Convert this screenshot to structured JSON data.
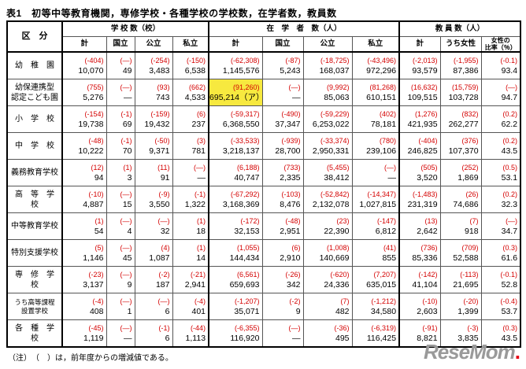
{
  "title": "表1　初等中等教育機関，専修学校・各種学校の学校数，在学者数，教員数",
  "header": {
    "category": "区　分",
    "groups": [
      {
        "label": "学 校 数（校）",
        "cols": [
          "計",
          "国立",
          "公立",
          "私立"
        ]
      },
      {
        "label": "在　学　者　数（人）",
        "cols": [
          "計",
          "国立",
          "公立",
          "私立"
        ]
      },
      {
        "label": "教 員 数（人）",
        "cols": [
          "計",
          "うち女性",
          "女性の\n比率（％）"
        ]
      }
    ]
  },
  "rows": [
    {
      "label": "幼　稚　園",
      "small": false,
      "cells": [
        {
          "c": "(-404)",
          "v": "10,070"
        },
        {
          "c": "(—)",
          "v": "49"
        },
        {
          "c": "(-254)",
          "v": "3,483"
        },
        {
          "c": "(-150)",
          "v": "6,538"
        },
        {
          "c": "(-62,308)",
          "v": "1,145,576"
        },
        {
          "c": "(-87)",
          "v": "5,243"
        },
        {
          "c": "(-18,725)",
          "v": "168,037"
        },
        {
          "c": "(-43,496)",
          "v": "972,296"
        },
        {
          "c": "(-2,013)",
          "v": "93,579"
        },
        {
          "c": "(-1,955)",
          "v": "87,386"
        },
        {
          "c": "(-0.1)",
          "v": "93.4"
        }
      ]
    },
    {
      "label": "幼保連携型\n認定こども園",
      "small": false,
      "cells": [
        {
          "c": "(755)",
          "v": "5,276"
        },
        {
          "c": "(—)",
          "v": "—"
        },
        {
          "c": "(93)",
          "v": "743"
        },
        {
          "c": "(662)",
          "v": "4,533"
        },
        {
          "c": "(91,260)",
          "v": "695,214（ア）",
          "hl": true
        },
        {
          "c": "(—)",
          "v": "—"
        },
        {
          "c": "(9,992)",
          "v": "85,063"
        },
        {
          "c": "(81,268)",
          "v": "610,151"
        },
        {
          "c": "(16,632)",
          "v": "109,515"
        },
        {
          "c": "(15,759)",
          "v": "103,728"
        },
        {
          "c": "(—)",
          "v": "94.7"
        }
      ]
    },
    {
      "label": "小　学　校",
      "small": false,
      "cells": [
        {
          "c": "(-154)",
          "v": "19,738"
        },
        {
          "c": "(-1)",
          "v": "69"
        },
        {
          "c": "(-159)",
          "v": "19,432"
        },
        {
          "c": "(6)",
          "v": "237"
        },
        {
          "c": "(-59,317)",
          "v": "6,368,550"
        },
        {
          "c": "(-490)",
          "v": "37,347"
        },
        {
          "c": "(-59,229)",
          "v": "6,253,022"
        },
        {
          "c": "(402)",
          "v": "78,181"
        },
        {
          "c": "(1,276)",
          "v": "421,935"
        },
        {
          "c": "(832)",
          "v": "262,277"
        },
        {
          "c": "(0.2)",
          "v": "62.2"
        }
      ]
    },
    {
      "label": "中　学　校",
      "small": false,
      "cells": [
        {
          "c": "(-48)",
          "v": "10,222"
        },
        {
          "c": "(-1)",
          "v": "70"
        },
        {
          "c": "(-50)",
          "v": "9,371"
        },
        {
          "c": "(3)",
          "v": "781"
        },
        {
          "c": "(-33,533)",
          "v": "3,218,137"
        },
        {
          "c": "(-939)",
          "v": "28,700"
        },
        {
          "c": "(-33,374)",
          "v": "2,950,331"
        },
        {
          "c": "(780)",
          "v": "239,106"
        },
        {
          "c": "(-404)",
          "v": "246,825"
        },
        {
          "c": "(376)",
          "v": "107,370"
        },
        {
          "c": "(0.2)",
          "v": "43.5"
        }
      ]
    },
    {
      "label": "義務教育学校",
      "small": false,
      "cells": [
        {
          "c": "(12)",
          "v": "94"
        },
        {
          "c": "(1)",
          "v": "3"
        },
        {
          "c": "(11)",
          "v": "91"
        },
        {
          "c": "(—)",
          "v": "—"
        },
        {
          "c": "(6,188)",
          "v": "40,747"
        },
        {
          "c": "(733)",
          "v": "2,335"
        },
        {
          "c": "(5,455)",
          "v": "38,412"
        },
        {
          "c": "(—)",
          "v": "—"
        },
        {
          "c": "(505)",
          "v": "3,520"
        },
        {
          "c": "(252)",
          "v": "1,869"
        },
        {
          "c": "(0.5)",
          "v": "53.1"
        }
      ]
    },
    {
      "label": "高　等　学　校",
      "small": false,
      "cells": [
        {
          "c": "(-10)",
          "v": "4,887"
        },
        {
          "c": "(—)",
          "v": "15"
        },
        {
          "c": "(-9)",
          "v": "3,550"
        },
        {
          "c": "(-1)",
          "v": "1,322"
        },
        {
          "c": "(-67,292)",
          "v": "3,168,369"
        },
        {
          "c": "(-103)",
          "v": "8,476"
        },
        {
          "c": "(-52,842)",
          "v": "2,132,078"
        },
        {
          "c": "(-14,347)",
          "v": "1,027,815"
        },
        {
          "c": "(-1,483)",
          "v": "231,319"
        },
        {
          "c": "(26)",
          "v": "74,686"
        },
        {
          "c": "(0.2)",
          "v": "32.3"
        }
      ]
    },
    {
      "label": "中等教育学校",
      "small": false,
      "cells": [
        {
          "c": "(1)",
          "v": "54"
        },
        {
          "c": "(—)",
          "v": "4"
        },
        {
          "c": "(—)",
          "v": "32"
        },
        {
          "c": "(1)",
          "v": "18"
        },
        {
          "c": "(-172)",
          "v": "32,153"
        },
        {
          "c": "(-48)",
          "v": "2,951"
        },
        {
          "c": "(23)",
          "v": "22,390"
        },
        {
          "c": "(-147)",
          "v": "6,812"
        },
        {
          "c": "(13)",
          "v": "2,642"
        },
        {
          "c": "(7)",
          "v": "918"
        },
        {
          "c": "(—)",
          "v": "34.7"
        }
      ]
    },
    {
      "label": "特別支援学校",
      "small": false,
      "cells": [
        {
          "c": "(5)",
          "v": "1,146"
        },
        {
          "c": "(—)",
          "v": "45"
        },
        {
          "c": "(4)",
          "v": "1,087"
        },
        {
          "c": "(1)",
          "v": "14"
        },
        {
          "c": "(1,055)",
          "v": "144,434"
        },
        {
          "c": "(6)",
          "v": "2,910"
        },
        {
          "c": "(1,008)",
          "v": "140,669"
        },
        {
          "c": "(41)",
          "v": "855"
        },
        {
          "c": "(736)",
          "v": "85,336"
        },
        {
          "c": "(709)",
          "v": "52,588"
        },
        {
          "c": "(0.3)",
          "v": "61.6"
        }
      ]
    },
    {
      "label": "専　修　学　校",
      "small": false,
      "cells": [
        {
          "c": "(-23)",
          "v": "3,137"
        },
        {
          "c": "(—)",
          "v": "9"
        },
        {
          "c": "(-2)",
          "v": "187"
        },
        {
          "c": "(-21)",
          "v": "2,941"
        },
        {
          "c": "(6,561)",
          "v": "659,693"
        },
        {
          "c": "(-26)",
          "v": "342"
        },
        {
          "c": "(-620)",
          "v": "24,336"
        },
        {
          "c": "(7,207)",
          "v": "635,015"
        },
        {
          "c": "(-142)",
          "v": "41,104"
        },
        {
          "c": "(-113)",
          "v": "21,695"
        },
        {
          "c": "(-0.1)",
          "v": "52.8"
        }
      ]
    },
    {
      "label": "うち高等課程\n設置学校",
      "small": true,
      "cells": [
        {
          "c": "(-4)",
          "v": "408"
        },
        {
          "c": "(—)",
          "v": "1"
        },
        {
          "c": "(—)",
          "v": "6"
        },
        {
          "c": "(-4)",
          "v": "401"
        },
        {
          "c": "(-1,207)",
          "v": "35,071"
        },
        {
          "c": "(-2)",
          "v": "9"
        },
        {
          "c": "(7)",
          "v": "482"
        },
        {
          "c": "(-1,212)",
          "v": "34,580"
        },
        {
          "c": "(-10)",
          "v": "2,603"
        },
        {
          "c": "(-20)",
          "v": "1,399"
        },
        {
          "c": "(-0.4)",
          "v": "53.7"
        }
      ]
    },
    {
      "label": "各　種　学　校",
      "small": false,
      "cells": [
        {
          "c": "(-45)",
          "v": "1,119"
        },
        {
          "c": "(—)",
          "v": "—"
        },
        {
          "c": "(-1)",
          "v": "6"
        },
        {
          "c": "(-44)",
          "v": "1,113"
        },
        {
          "c": "(-6,355)",
          "v": "116,920"
        },
        {
          "c": "(—)",
          "v": "—"
        },
        {
          "c": "(-36)",
          "v": "495"
        },
        {
          "c": "(-6,319)",
          "v": "116,425"
        },
        {
          "c": "(-91)",
          "v": "8,821"
        },
        {
          "c": "(-3)",
          "v": "3,835"
        },
        {
          "c": "(0.3)",
          "v": "43.5"
        }
      ]
    }
  ],
  "note": "（注）　（　）は，前年度からの増減値である。",
  "watermark": {
    "text": "ReseMom",
    "dot": "."
  },
  "colors": {
    "change_red": "#d40000",
    "highlight_yellow": "#f7e93f",
    "border_black": "#000000",
    "watermark_gray": "#9a9a9a",
    "watermark_red": "#e60012"
  }
}
